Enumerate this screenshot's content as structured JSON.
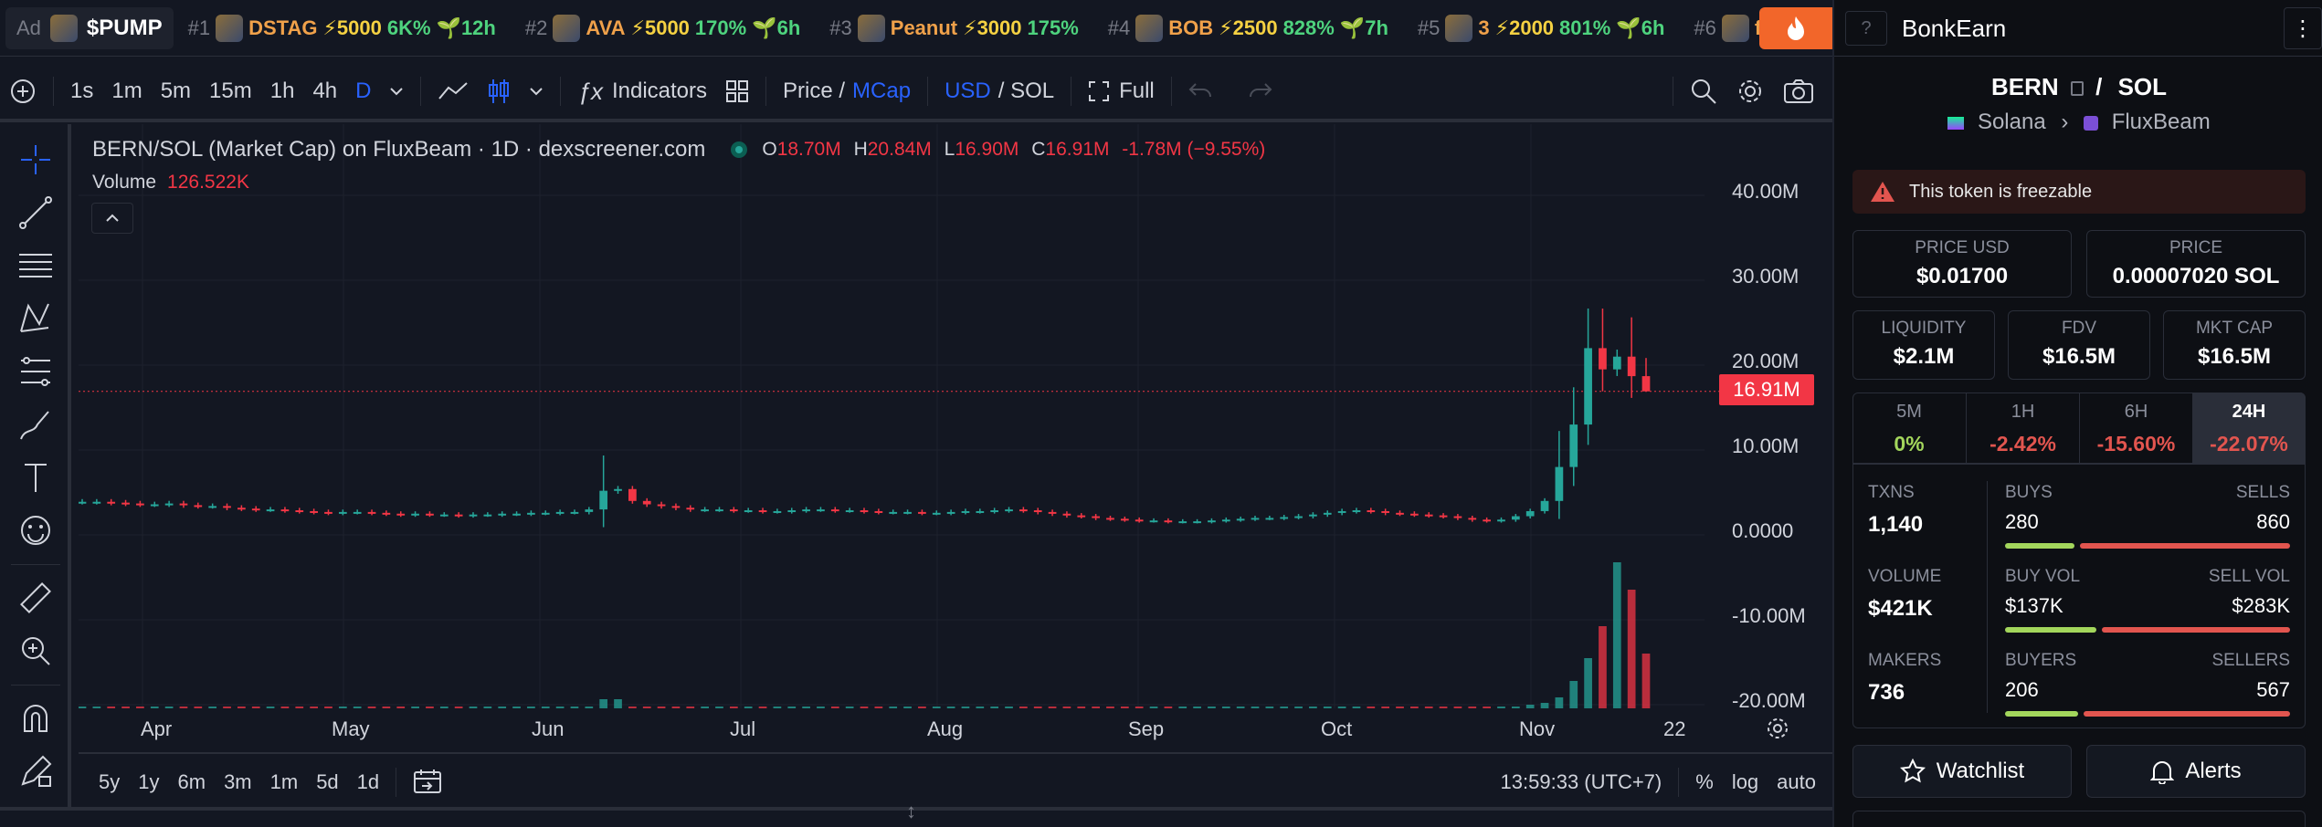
{
  "trending": {
    "ad": {
      "tag": "Ad",
      "name": "$PUMP"
    },
    "items": [
      {
        "rank": "#1",
        "name": "DSTAG",
        "boost": "⚡5000",
        "pct": "6K%",
        "age": "🌱12h"
      },
      {
        "rank": "#2",
        "name": "AVA",
        "boost": "⚡5000",
        "pct": "170%",
        "age": "🌱6h"
      },
      {
        "rank": "#3",
        "name": "Peanut",
        "boost": "⚡3000",
        "pct": "175%",
        "age": ""
      },
      {
        "rank": "#4",
        "name": "BOB",
        "boost": "⚡2500",
        "pct": "828%",
        "age": "🌱7h"
      },
      {
        "rank": "#5",
        "name": "3",
        "boost": "⚡2000",
        "pct": "801%",
        "age": "🌱6h"
      },
      {
        "rank": "#6",
        "name": "fur",
        "boost": "",
        "pct": "",
        "age": ""
      }
    ]
  },
  "toolbar": {
    "intervals": [
      "1s",
      "1m",
      "5m",
      "15m",
      "1h",
      "4h",
      "D"
    ],
    "active_interval": "D",
    "indicators": "Indicators",
    "price_label": "Price /",
    "mcap_label": "MCap",
    "usd_label": "USD",
    "sol_label": "/ SOL",
    "full_label": "Full"
  },
  "chart": {
    "legend_title": "BERN/SOL (Market Cap) on FluxBeam · 1D · dexscreener.com",
    "ohlc": {
      "o_label": "O",
      "o": "18.70M",
      "h_label": "H",
      "h": "20.84M",
      "l_label": "L",
      "l": "16.90M",
      "c_label": "C",
      "c": "16.91M",
      "change": "-1.78M (−9.55%)"
    },
    "volume_label": "Volume",
    "volume_value": "126.522K",
    "last_price_tag": "16.91M",
    "y_ticks": [
      "40.00M",
      "30.00M",
      "20.00M",
      "10.00M",
      "0.0000",
      "-10.00M",
      "-20.00M"
    ],
    "x_ticks": [
      "Apr",
      "May",
      "Jun",
      "Jul",
      "Aug",
      "Sep",
      "Oct",
      "Nov",
      "22"
    ]
  },
  "chart_data": {
    "type": "candlestick",
    "title": "BERN/SOL (Market Cap) on FluxBeam · 1D · dexscreener.com",
    "xlabel": "",
    "ylabel": "",
    "ylim": [
      -20000000,
      40000000
    ],
    "x_ticks": [
      "Apr",
      "May",
      "Jun",
      "Jul",
      "Aug",
      "Sep",
      "Oct",
      "Nov",
      "22"
    ],
    "series": [
      {
        "name": "Market Cap",
        "approx_daily_close_millions": [
          3.9,
          3.9,
          3.8,
          3.7,
          3.6,
          3.6,
          3.7,
          3.5,
          3.4,
          3.4,
          3.2,
          3.1,
          3.0,
          3.0,
          2.9,
          2.8,
          2.7,
          2.6,
          2.7,
          2.7,
          2.6,
          2.5,
          2.4,
          2.5,
          2.4,
          2.4,
          2.3,
          2.4,
          2.4,
          2.5,
          2.5,
          2.6,
          2.6,
          2.7,
          2.7,
          3.0,
          5.2,
          5.4,
          4.0,
          3.6,
          3.4,
          3.2,
          3.0,
          3.0,
          3.0,
          2.9,
          2.9,
          2.8,
          2.8,
          2.9,
          3.0,
          3.0,
          2.9,
          2.9,
          2.8,
          2.7,
          2.7,
          2.7,
          2.6,
          2.6,
          2.7,
          2.8,
          2.8,
          2.9,
          3.0,
          2.9,
          2.7,
          2.5,
          2.3,
          2.2,
          2.0,
          1.9,
          1.8,
          1.7,
          1.7,
          1.6,
          1.6,
          1.6,
          1.7,
          1.8,
          1.9,
          2.0,
          2.0,
          2.1,
          2.2,
          2.4,
          2.6,
          2.8,
          2.9,
          2.8,
          2.6,
          2.5,
          2.4,
          2.3,
          2.2,
          2.0,
          1.8,
          1.7,
          1.8,
          2.2,
          2.8,
          4.0,
          8.0,
          13.0,
          22.0,
          19.5,
          21.0,
          18.7,
          16.91
        ],
        "last_ohlc_millions": {
          "open": 18.7,
          "high": 20.84,
          "low": 16.9,
          "close": 16.91
        }
      },
      {
        "name": "Volume",
        "last_value": "126.522K"
      }
    ]
  },
  "bottombar": {
    "ranges": [
      "5y",
      "1y",
      "6m",
      "3m",
      "1m",
      "5d",
      "1d"
    ],
    "time": "13:59:33 (UTC+7)",
    "pct": "%",
    "log": "log",
    "auto": "auto"
  },
  "panel": {
    "title": "BonkEarn",
    "help": "?",
    "pair_base": "BERN",
    "pair_sep": "/",
    "pair_quote": "SOL",
    "chain": "Solana",
    "dex": "FluxBeam",
    "warning": "This token is freezable",
    "price_usd_label": "PRICE USD",
    "price_usd": "$0.01700",
    "price_label": "PRICE",
    "price": "0.00007020 SOL",
    "liquidity_label": "LIQUIDITY",
    "liquidity": "$2.1M",
    "fdv_label": "FDV",
    "fdv": "$16.5M",
    "mktcap_label": "MKT CAP",
    "mktcap": "$16.5M",
    "timeframes": [
      {
        "label": "5M",
        "value": "0%"
      },
      {
        "label": "1H",
        "value": "-2.42%"
      },
      {
        "label": "6H",
        "value": "-15.60%"
      },
      {
        "label": "24H",
        "value": "-22.07%"
      }
    ],
    "txns_label": "TXNS",
    "txns": "1,140",
    "buys_label": "BUYS",
    "buys": "280",
    "sells_label": "SELLS",
    "sells": "860",
    "volume_label": "VOLUME",
    "volume": "$421K",
    "buyvol_label": "BUY VOL",
    "buyvol": "$137K",
    "sellvol_label": "SELL VOL",
    "sellvol": "$283K",
    "makers_label": "MAKERS",
    "makers": "736",
    "buyers_label": "BUYERS",
    "buyers": "206",
    "sellers_label": "SELLERS",
    "sellers": "567",
    "watchlist": "Watchlist",
    "alerts": "Alerts",
    "colors": {
      "positive": "#a3d65c",
      "negative": "#e2554f",
      "accent": "#2962ff",
      "brand": "#f2662a"
    }
  }
}
